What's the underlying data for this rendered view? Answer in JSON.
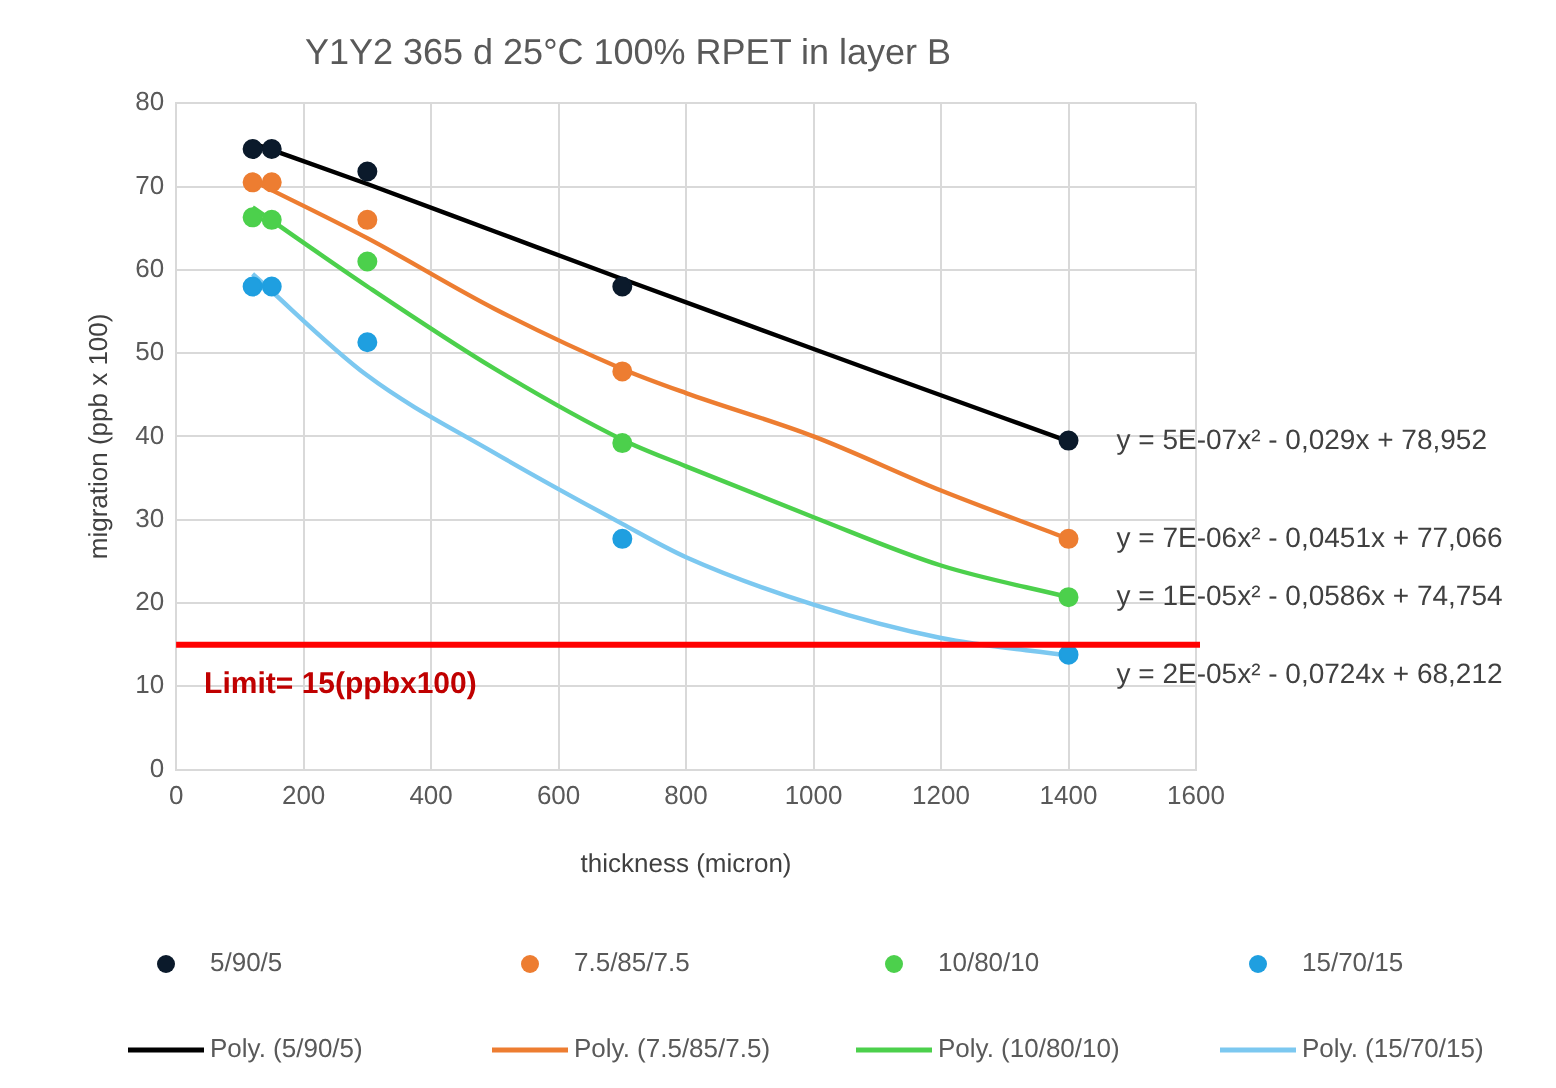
{
  "chart_data": {
    "type": "scatter",
    "title": "Y1Y2 365 d 25°C 100% RPET in layer B",
    "xlabel": "thickness (micron)",
    "ylabel": "migration (ppb x 100)",
    "xlim": [
      0,
      1600
    ],
    "xticks": [
      0,
      200,
      400,
      600,
      800,
      1000,
      1200,
      1400,
      1600
    ],
    "ylim": [
      0,
      80
    ],
    "yticks": [
      0,
      10,
      20,
      30,
      40,
      50,
      60,
      70,
      80
    ],
    "grid": true,
    "legend": "bottom",
    "series": [
      {
        "name": "5/90/5",
        "type": "scatter",
        "marker": "circle",
        "color": "#0b1a2b",
        "x": [
          120,
          150,
          300,
          700,
          1400
        ],
        "values": [
          74.5,
          74.5,
          71.8,
          58,
          39.5
        ]
      },
      {
        "name": "7.5/85/7.5",
        "type": "scatter",
        "marker": "circle",
        "color": "#ed7d31",
        "x": [
          120,
          150,
          300,
          700,
          1400
        ],
        "values": [
          70.5,
          70.5,
          66,
          47.8,
          27.7
        ]
      },
      {
        "name": "10/80/10",
        "type": "scatter",
        "marker": "circle",
        "color": "#4cd04c",
        "x": [
          120,
          150,
          300,
          700,
          1400
        ],
        "values": [
          66.3,
          66,
          61,
          39.2,
          20.7
        ]
      },
      {
        "name": "15/70/15",
        "type": "scatter",
        "marker": "circle",
        "color": "#1f9fe0",
        "x": [
          120,
          150,
          300,
          700,
          1400
        ],
        "values": [
          58,
          58,
          51.3,
          27.7,
          13.8
        ]
      },
      {
        "name": "Poly. (5/90/5)",
        "type": "line",
        "marker": "none",
        "color": "#000000",
        "x": [
          120,
          300,
          500,
          700,
          900,
          1100,
          1400
        ],
        "values": [
          75.2,
          70.3,
          64.6,
          58.9,
          53.3,
          47.7,
          39.4
        ]
      },
      {
        "name": "Poly. (7.5/85/7.5)",
        "type": "line",
        "marker": "none",
        "color": "#ed7d31",
        "x": [
          120,
          300,
          500,
          700,
          800,
          1000,
          1200,
          1400
        ],
        "values": [
          70.7,
          63.8,
          55.3,
          48.1,
          45.2,
          40,
          33.5,
          27.7
        ]
      },
      {
        "name": "Poly. (10/80/10)",
        "type": "line",
        "marker": "none",
        "color": "#4cd04c",
        "x": [
          120,
          300,
          500,
          700,
          800,
          1000,
          1200,
          1400
        ],
        "values": [
          67.5,
          58,
          48.1,
          39.6,
          36.4,
          30.3,
          24.5,
          20.7
        ]
      },
      {
        "name": "Poly. (15/70/15)",
        "type": "line",
        "marker": "none",
        "color": "#7cc8f0",
        "x": [
          120,
          300,
          500,
          700,
          800,
          1000,
          1200,
          1400
        ],
        "values": [
          59.5,
          47.3,
          38,
          29.5,
          25.5,
          19.8,
          15.8,
          13.7
        ]
      }
    ],
    "ref_lines": [
      {
        "axis": "y",
        "value": 15,
        "label": "Limit= 15(ppbx100)",
        "color": "#ff0000"
      }
    ],
    "annotations": [
      "y = 5E-07x² - 0,029x + 78,952",
      "y = 7E-06x² - 0,0451x + 77,066",
      "y = 1E-05x² - 0,0586x + 74,754",
      "y = 2E-05x² - 0,0724x + 68,212"
    ]
  }
}
